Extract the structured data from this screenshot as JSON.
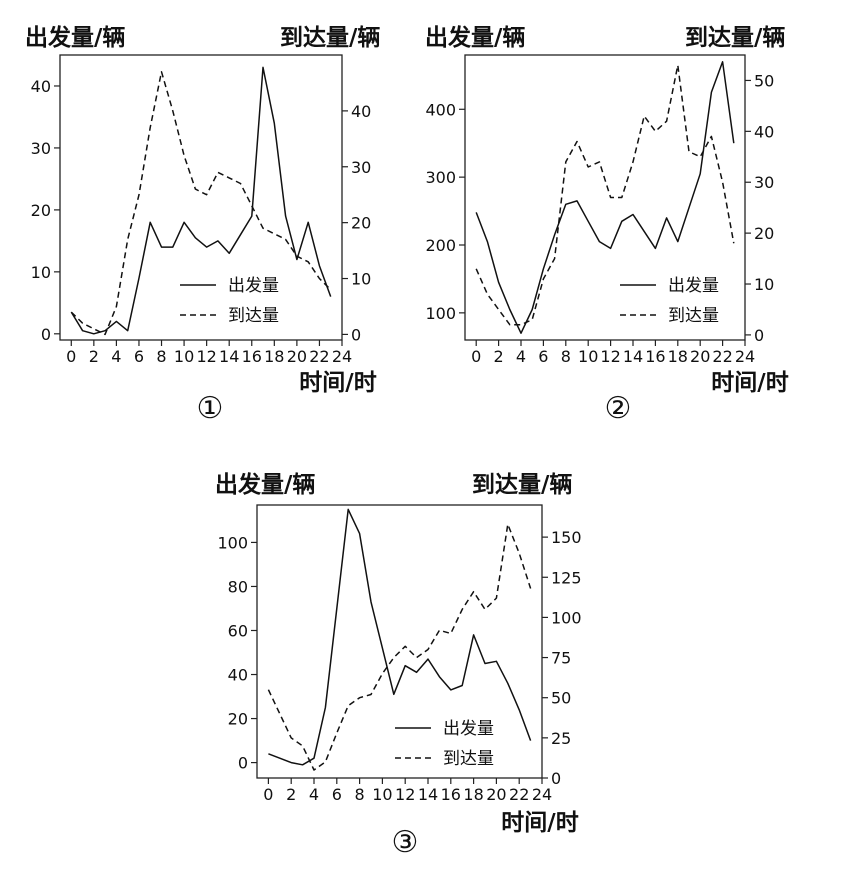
{
  "chart_data": [
    {
      "type": "line",
      "panel_label": "①",
      "left_axis_title": "出发量/辆",
      "right_axis_title": "到达量/辆",
      "xlabel": "时间/时",
      "x_ticks": [
        "0",
        "2",
        "4",
        "6",
        "8",
        "10",
        "12",
        "14",
        "16",
        "18",
        "20",
        "22",
        "24"
      ],
      "left_ticks": [
        "0",
        "10",
        "20",
        "30",
        "40"
      ],
      "right_ticks": [
        "0",
        "10",
        "20",
        "30",
        "40"
      ],
      "xlim": [
        -1,
        24
      ],
      "ylim_left": [
        -1,
        45
      ],
      "ylim_right": [
        -1,
        50
      ],
      "legend_position": "bottom-right",
      "series": [
        {
          "name": "出发量",
          "axis": "left",
          "style": "solid",
          "x": [
            0,
            1,
            2,
            3,
            4,
            5,
            6,
            7,
            8,
            9,
            10,
            11,
            12,
            13,
            14,
            15,
            16,
            17,
            18,
            19,
            20,
            21,
            22,
            23
          ],
          "values": [
            3.5,
            0.5,
            0,
            0.5,
            2,
            0.5,
            9,
            18,
            14,
            14,
            18,
            15.5,
            14,
            15,
            13,
            16,
            19,
            43,
            34,
            19,
            12,
            18,
            11,
            6
          ]
        },
        {
          "name": "到达量",
          "axis": "right",
          "style": "dashed",
          "x": [
            0,
            1,
            2,
            3,
            4,
            5,
            6,
            7,
            8,
            9,
            10,
            11,
            12,
            13,
            14,
            15,
            16,
            17,
            18,
            19,
            20,
            21,
            22,
            23
          ],
          "values": [
            4,
            2,
            1,
            0,
            5,
            17,
            25,
            37,
            47,
            40,
            32,
            26,
            25,
            29,
            28,
            27,
            23,
            19,
            18,
            17,
            14,
            13,
            10,
            8
          ]
        }
      ]
    },
    {
      "type": "line",
      "panel_label": "②",
      "left_axis_title": "出发量/辆",
      "right_axis_title": "到达量/辆",
      "xlabel": "时间/时",
      "x_ticks": [
        "0",
        "2",
        "4",
        "6",
        "8",
        "10",
        "12",
        "14",
        "16",
        "18",
        "20",
        "22",
        "24"
      ],
      "left_ticks": [
        "100",
        "200",
        "300",
        "400"
      ],
      "right_ticks": [
        "0",
        "10",
        "20",
        "30",
        "40",
        "50"
      ],
      "xlim": [
        -1,
        24
      ],
      "ylim_left": [
        60,
        480
      ],
      "ylim_right": [
        -1,
        55
      ],
      "legend_position": "bottom-right",
      "series": [
        {
          "name": "出发量",
          "axis": "left",
          "style": "solid",
          "x": [
            0,
            1,
            2,
            3,
            4,
            5,
            6,
            7,
            8,
            9,
            10,
            11,
            12,
            13,
            14,
            15,
            16,
            17,
            18,
            19,
            20,
            21,
            22,
            23
          ],
          "values": [
            248,
            205,
            145,
            105,
            70,
            105,
            165,
            215,
            260,
            265,
            235,
            205,
            195,
            235,
            245,
            220,
            195,
            240,
            205,
            255,
            305,
            425,
            470,
            350
          ]
        },
        {
          "name": "到达量",
          "axis": "right",
          "style": "dashed",
          "x": [
            0,
            1,
            2,
            3,
            4,
            5,
            6,
            7,
            8,
            9,
            10,
            11,
            12,
            13,
            14,
            15,
            16,
            17,
            18,
            19,
            20,
            21,
            22,
            23
          ],
          "values": [
            13,
            8,
            5,
            2,
            2,
            3,
            11,
            15,
            34,
            38,
            33,
            34,
            27,
            27,
            34,
            43,
            40,
            42,
            53,
            36,
            35,
            39,
            30,
            18
          ]
        }
      ]
    },
    {
      "type": "line",
      "panel_label": "③",
      "left_axis_title": "出发量/辆",
      "right_axis_title": "到达量/辆",
      "xlabel": "时间/时",
      "x_ticks": [
        "0",
        "2",
        "4",
        "6",
        "8",
        "10",
        "12",
        "14",
        "16",
        "18",
        "20",
        "22",
        "24"
      ],
      "left_ticks": [
        "0",
        "20",
        "40",
        "60",
        "80",
        "100"
      ],
      "right_ticks": [
        "0",
        "25",
        "50",
        "75",
        "100",
        "125",
        "150"
      ],
      "xlim": [
        -1,
        24
      ],
      "ylim_left": [
        -7,
        117
      ],
      "ylim_right": [
        0,
        170
      ],
      "legend_position": "bottom-right",
      "series": [
        {
          "name": "出发量",
          "axis": "left",
          "style": "solid",
          "x": [
            0,
            1,
            2,
            3,
            4,
            5,
            6,
            7,
            8,
            9,
            10,
            11,
            12,
            13,
            14,
            15,
            16,
            17,
            18,
            19,
            20,
            21,
            22,
            23
          ],
          "values": [
            4,
            2,
            0,
            -1,
            2,
            25,
            70,
            115,
            104,
            73,
            52,
            31,
            44,
            41,
            47,
            39,
            33,
            35,
            58,
            45,
            46,
            36,
            24,
            10
          ]
        },
        {
          "name": "到达量",
          "axis": "right",
          "style": "dashed",
          "x": [
            0,
            1,
            2,
            3,
            4,
            5,
            6,
            7,
            8,
            9,
            10,
            11,
            12,
            13,
            14,
            15,
            16,
            17,
            18,
            19,
            20,
            21,
            22,
            23
          ],
          "values": [
            55,
            40,
            25,
            20,
            5,
            10,
            28,
            45,
            50,
            52,
            65,
            75,
            82,
            75,
            80,
            92,
            90,
            105,
            116,
            105,
            112,
            158,
            140,
            118
          ]
        }
      ]
    }
  ]
}
